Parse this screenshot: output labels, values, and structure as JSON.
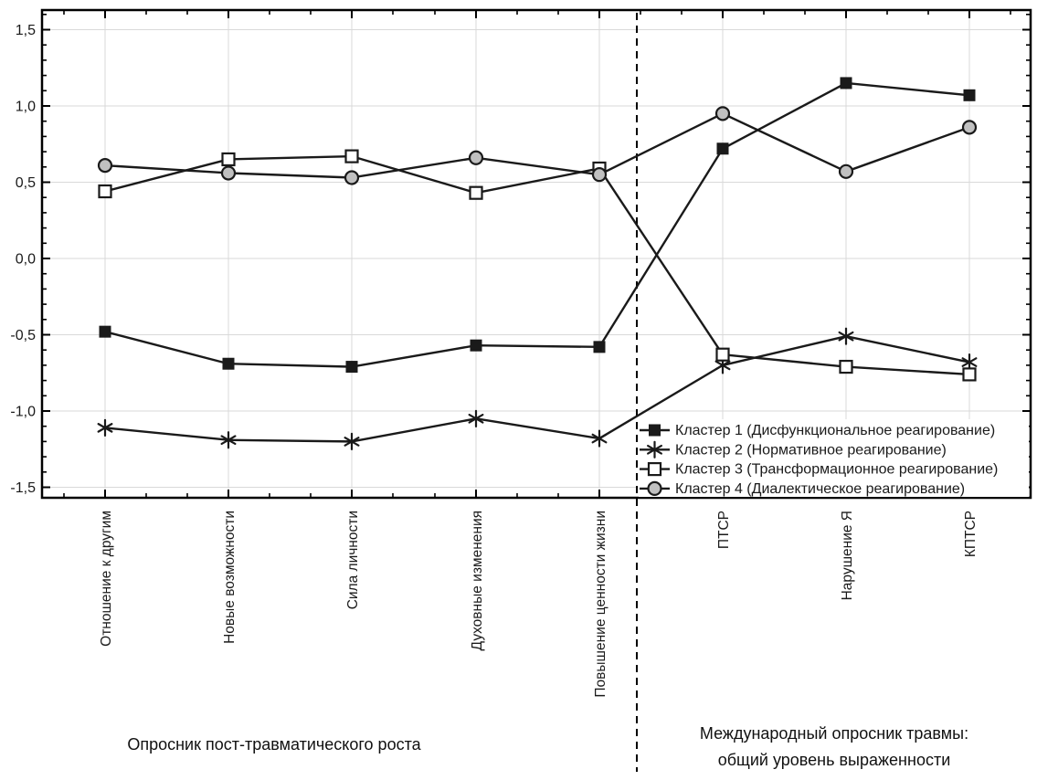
{
  "chart_data": {
    "type": "line",
    "title": "",
    "categories": [
      "Отношение к другим",
      "Новые возможности",
      "Сила личности",
      "Духовные изменения",
      "Повышение ценности жизни",
      "ПТСР",
      "Нарушение Я",
      "КПТСР"
    ],
    "series": [
      {
        "name": "Кластер 1 (Дисфункциональное реагирование)",
        "marker": "filled-square",
        "values": [
          -0.48,
          -0.69,
          -0.71,
          -0.57,
          -0.58,
          0.72,
          1.15,
          1.07
        ]
      },
      {
        "name": "Кластер 2 (Нормативное реагирование)",
        "marker": "asterisk",
        "values": [
          -1.11,
          -1.19,
          -1.2,
          -1.05,
          -1.18,
          -0.7,
          -0.51,
          -0.68
        ]
      },
      {
        "name": "Кластер 3 (Трансформационное реагирование)",
        "marker": "open-square",
        "values": [
          0.44,
          0.65,
          0.67,
          0.43,
          0.59,
          -0.63,
          -0.71,
          -0.76
        ]
      },
      {
        "name": "Кластер 4 (Диалектическое реагирование)",
        "marker": "gray-circle",
        "values": [
          0.61,
          0.56,
          0.53,
          0.66,
          0.55,
          0.95,
          0.57,
          0.86
        ]
      }
    ],
    "y_axis": {
      "min": -1.5,
      "max": 1.5,
      "step": 0.5,
      "tick_values": [
        1.5,
        1.0,
        0.5,
        0.0,
        -0.5,
        -1.0,
        -1.5
      ],
      "tick_labels": [
        "1,5",
        "1,0",
        "0,5",
        "0,0",
        "-0,5",
        "-1,0",
        "-1,5"
      ]
    },
    "grid": true,
    "legend_position": "inside-bottom-right",
    "separator": {
      "style": "dashed",
      "after_category": "Повышение ценности жизни"
    },
    "groups": [
      {
        "caption": "Опросник пост-травматического роста",
        "span": [
          0,
          4
        ]
      },
      {
        "caption_line1": "Международный опросник травмы:",
        "caption_line2": "общий уровень выраженности",
        "span": [
          5,
          7
        ]
      }
    ],
    "colors": {
      "line": "#1a1a1a",
      "box": "#000000",
      "grid": "#d9d9d9",
      "circle_fill": "#c0c0c0",
      "marker_fill_white": "#ffffff",
      "background": "#ffffff",
      "text": "#1a1a1a"
    }
  }
}
